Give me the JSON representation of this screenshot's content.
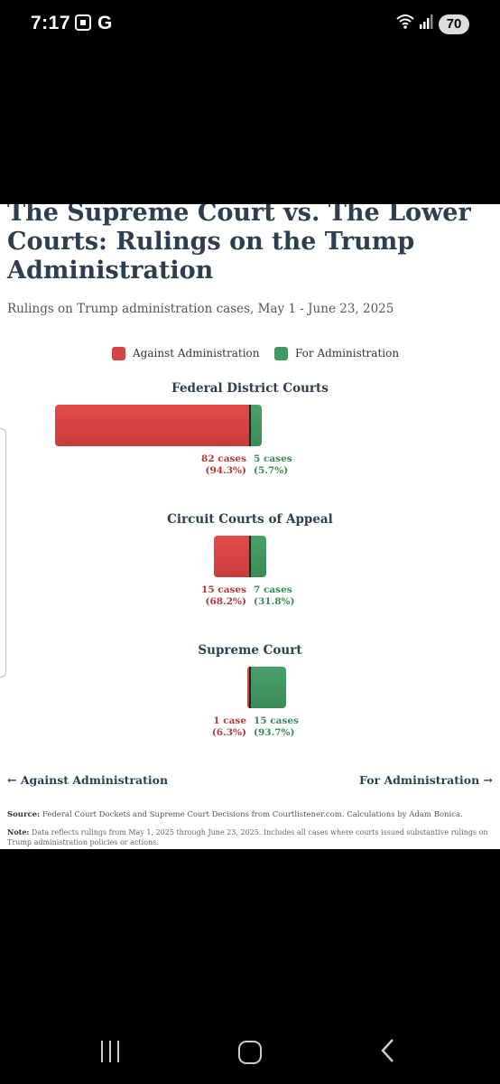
{
  "status_bar": {
    "time": "7:17",
    "extra_label": "G",
    "battery": "70"
  },
  "chart": {
    "title": "The Supreme Court vs. The Lower Courts: Rulings on the Trump Administration",
    "subtitle": "Rulings on Trump administration cases, May 1 - June 23, 2025",
    "legend": {
      "against": "Against Administration",
      "for": "For Administration"
    },
    "axis_left": "← Against Administration",
    "axis_right": "For Administration →",
    "source_label": "Source:",
    "source_text": " Federal Court Dockets and Supreme Court Decisions from Courtlistener.com. Calculations by Adam Bonica.",
    "note_label": "Note:",
    "note_text": " Data reflects rulings from May 1, 2025 through June 23, 2025. Includes all cases where courts issued substantive rulings on Trump administration policies or actions."
  },
  "chart_data": {
    "type": "bar",
    "title": "The Supreme Court vs. The Lower Courts: Rulings on the Trump Administration",
    "subtitle": "Rulings on Trump administration cases, May 1 - June 23, 2025",
    "orientation": "horizontal diverging",
    "legend_position": "top",
    "colors": {
      "against": "#d64545",
      "for": "#449663"
    },
    "series": [
      {
        "name": "Against Administration",
        "values": [
          82,
          15,
          1
        ]
      },
      {
        "name": "For Administration",
        "values": [
          5,
          7,
          15
        ]
      }
    ],
    "categories": [
      "Federal District Courts",
      "Circuit Courts of Appeal",
      "Supreme Court"
    ],
    "panels": [
      {
        "name": "Federal District Courts",
        "against": 82,
        "for": 5,
        "against_label": "82 cases",
        "against_pct": "(94.3%)",
        "for_label": "5 cases",
        "for_pct": "(5.7%)"
      },
      {
        "name": "Circuit Courts of Appeal",
        "against": 15,
        "for": 7,
        "against_label": "15 cases",
        "against_pct": "(68.2%)",
        "for_label": "7 cases",
        "for_pct": "(31.8%)"
      },
      {
        "name": "Supreme Court",
        "against": 1,
        "for": 15,
        "against_label": "1 case",
        "against_pct": "(6.3%)",
        "for_label": "15 cases",
        "for_pct": "(93.7%)"
      }
    ]
  }
}
